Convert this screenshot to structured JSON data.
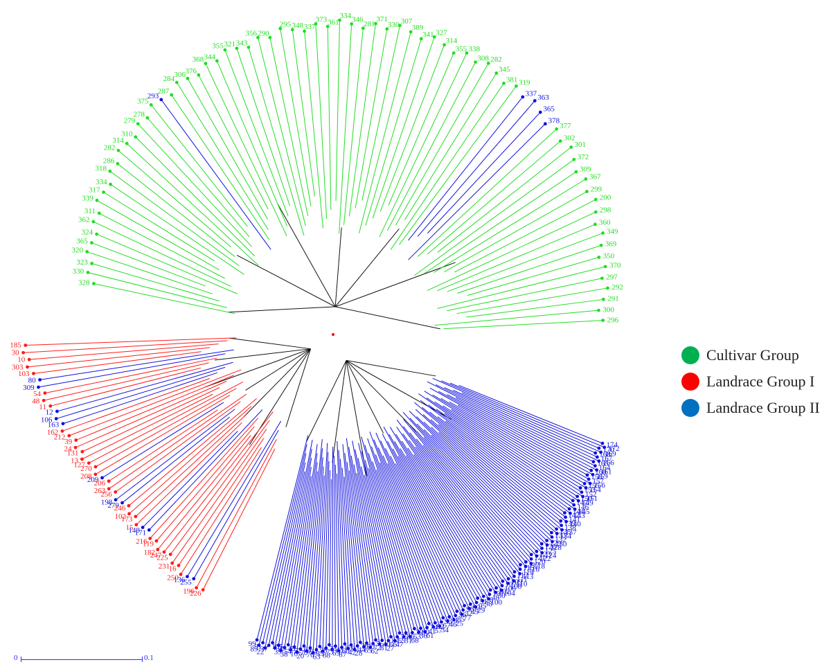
{
  "diagram": {
    "type": "circular-dendrogram",
    "root_color": "#ff0000",
    "cultivar": {
      "color": "#22dd22",
      "leaves": [
        {
          "label": "328",
          "color": "green"
        },
        {
          "label": "330",
          "color": "green"
        },
        {
          "label": "323",
          "color": "green"
        },
        {
          "label": "320",
          "color": "green"
        },
        {
          "label": "365",
          "color": "green"
        },
        {
          "label": "324",
          "color": "green"
        },
        {
          "label": "362",
          "color": "green"
        },
        {
          "label": "311",
          "color": "green"
        },
        {
          "label": "339",
          "color": "green"
        },
        {
          "label": "317",
          "color": "green"
        },
        {
          "label": "334",
          "color": "green"
        },
        {
          "label": "318",
          "color": "green"
        },
        {
          "label": "286",
          "color": "green"
        },
        {
          "label": "282",
          "color": "green"
        },
        {
          "label": "314",
          "color": "green"
        },
        {
          "label": "310",
          "color": "green"
        },
        {
          "label": "279",
          "color": "green"
        },
        {
          "label": "278",
          "color": "green"
        },
        {
          "label": "375",
          "color": "green"
        },
        {
          "label": "293",
          "color": "blue"
        },
        {
          "label": "287",
          "color": "green"
        },
        {
          "label": "284",
          "color": "green"
        },
        {
          "label": "306",
          "color": "green"
        },
        {
          "label": "376",
          "color": "green"
        },
        {
          "label": "368",
          "color": "green"
        },
        {
          "label": "344",
          "color": "green"
        },
        {
          "label": "355",
          "color": "green"
        },
        {
          "label": "321",
          "color": "green"
        },
        {
          "label": "343",
          "color": "green"
        },
        {
          "label": "356",
          "color": "green"
        },
        {
          "label": "290",
          "color": "green"
        },
        {
          "label": "295",
          "color": "green"
        },
        {
          "label": "348",
          "color": "green"
        },
        {
          "label": "337",
          "color": "green"
        },
        {
          "label": "373",
          "color": "green"
        },
        {
          "label": "361",
          "color": "green"
        },
        {
          "label": "334",
          "color": "green"
        },
        {
          "label": "346",
          "color": "green"
        },
        {
          "label": "281",
          "color": "green"
        },
        {
          "label": "371",
          "color": "green"
        },
        {
          "label": "330",
          "color": "green"
        },
        {
          "label": "307",
          "color": "green"
        },
        {
          "label": "389",
          "color": "green"
        },
        {
          "label": "341",
          "color": "green"
        },
        {
          "label": "327",
          "color": "green"
        },
        {
          "label": "314",
          "color": "green"
        },
        {
          "label": "355",
          "color": "green"
        },
        {
          "label": "338",
          "color": "green"
        },
        {
          "label": "308",
          "color": "green"
        },
        {
          "label": "282",
          "color": "green"
        },
        {
          "label": "345",
          "color": "green"
        },
        {
          "label": "381",
          "color": "green"
        },
        {
          "label": "319",
          "color": "green"
        },
        {
          "label": "337",
          "color": "blue"
        },
        {
          "label": "363",
          "color": "blue"
        },
        {
          "label": "365",
          "color": "blue"
        },
        {
          "label": "378",
          "color": "blue"
        },
        {
          "label": "377",
          "color": "green"
        },
        {
          "label": "302",
          "color": "green"
        },
        {
          "label": "301",
          "color": "green"
        },
        {
          "label": "372",
          "color": "green"
        },
        {
          "label": "309",
          "color": "green"
        },
        {
          "label": "367",
          "color": "green"
        },
        {
          "label": "299",
          "color": "green"
        },
        {
          "label": "200",
          "color": "green"
        },
        {
          "label": "298",
          "color": "green"
        },
        {
          "label": "360",
          "color": "green"
        },
        {
          "label": "349",
          "color": "green"
        },
        {
          "label": "369",
          "color": "green"
        },
        {
          "label": "350",
          "color": "green"
        },
        {
          "label": "370",
          "color": "green"
        },
        {
          "label": "297",
          "color": "green"
        },
        {
          "label": "292",
          "color": "green"
        },
        {
          "label": "291",
          "color": "green"
        },
        {
          "label": "300",
          "color": "green"
        },
        {
          "label": "296",
          "color": "green"
        }
      ]
    },
    "landrace_1": {
      "color": "#ff1a1a",
      "leaves": [
        {
          "label": "185",
          "color": "red"
        },
        {
          "label": "30",
          "color": "red"
        },
        {
          "label": "10",
          "color": "red"
        },
        {
          "label": "303",
          "color": "red"
        },
        {
          "label": "103",
          "color": "red"
        },
        {
          "label": "80",
          "color": "blue"
        },
        {
          "label": "309",
          "color": "blue"
        },
        {
          "label": "54",
          "color": "red"
        },
        {
          "label": "48",
          "color": "red"
        },
        {
          "label": "11",
          "color": "red"
        },
        {
          "label": "12",
          "color": "blue"
        },
        {
          "label": "106",
          "color": "blue"
        },
        {
          "label": "163",
          "color": "blue"
        },
        {
          "label": "162",
          "color": "red"
        },
        {
          "label": "212",
          "color": "red"
        },
        {
          "label": "39",
          "color": "red"
        },
        {
          "label": "24",
          "color": "red"
        },
        {
          "label": "131",
          "color": "red"
        },
        {
          "label": "13",
          "color": "red"
        },
        {
          "label": "127",
          "color": "red"
        },
        {
          "label": "270",
          "color": "red"
        },
        {
          "label": "208",
          "color": "red"
        },
        {
          "label": "209",
          "color": "blue"
        },
        {
          "label": "206",
          "color": "red"
        },
        {
          "label": "263",
          "color": "red"
        },
        {
          "label": "256",
          "color": "red"
        },
        {
          "label": "198",
          "color": "blue"
        },
        {
          "label": "279",
          "color": "blue"
        },
        {
          "label": "246",
          "color": "red"
        },
        {
          "label": "102",
          "color": "red"
        },
        {
          "label": "173",
          "color": "red"
        },
        {
          "label": "15",
          "color": "red"
        },
        {
          "label": "148",
          "color": "blue"
        },
        {
          "label": "171",
          "color": "blue"
        },
        {
          "label": "216",
          "color": "red"
        },
        {
          "label": "119",
          "color": "red"
        },
        {
          "label": "182",
          "color": "red"
        },
        {
          "label": "247",
          "color": "red"
        },
        {
          "label": "225",
          "color": "red"
        },
        {
          "label": "231",
          "color": "red"
        },
        {
          "label": "16",
          "color": "red"
        },
        {
          "label": "250",
          "color": "red"
        },
        {
          "label": "136",
          "color": "blue"
        },
        {
          "label": "255",
          "color": "blue"
        },
        {
          "label": "196",
          "color": "red"
        },
        {
          "label": "226",
          "color": "red"
        }
      ]
    },
    "landrace_2": {
      "color": "#1010dd",
      "leaves": [
        {
          "label": "99"
        },
        {
          "label": "89"
        },
        {
          "label": "91"
        },
        {
          "label": "22"
        },
        {
          "label": "37"
        },
        {
          "label": "105"
        },
        {
          "label": "39"
        },
        {
          "label": "97"
        },
        {
          "label": "38"
        },
        {
          "label": "54"
        },
        {
          "label": "45"
        },
        {
          "label": "16"
        },
        {
          "label": "52"
        },
        {
          "label": "20"
        },
        {
          "label": "70"
        },
        {
          "label": "64"
        },
        {
          "label": "76"
        },
        {
          "label": "94"
        },
        {
          "label": "63"
        },
        {
          "label": "35"
        },
        {
          "label": "58"
        },
        {
          "label": "88"
        },
        {
          "label": "73"
        },
        {
          "label": "33"
        },
        {
          "label": "69"
        },
        {
          "label": "43"
        },
        {
          "label": "87"
        },
        {
          "label": "60"
        },
        {
          "label": "83"
        },
        {
          "label": "42"
        },
        {
          "label": "92"
        },
        {
          "label": "28"
        },
        {
          "label": "44"
        },
        {
          "label": "78"
        },
        {
          "label": "65"
        },
        {
          "label": "50"
        },
        {
          "label": "62"
        },
        {
          "label": "72"
        },
        {
          "label": "55"
        },
        {
          "label": "81"
        },
        {
          "label": "40"
        },
        {
          "label": "27"
        },
        {
          "label": "66"
        },
        {
          "label": "84"
        },
        {
          "label": "47"
        },
        {
          "label": "59"
        },
        {
          "label": "75"
        },
        {
          "label": "31"
        },
        {
          "label": "86"
        },
        {
          "label": "68"
        },
        {
          "label": "53"
        },
        {
          "label": "79"
        },
        {
          "label": "36"
        },
        {
          "label": "90"
        },
        {
          "label": "61"
        },
        {
          "label": "41"
        },
        {
          "label": "74"
        },
        {
          "label": "57"
        },
        {
          "label": "82"
        },
        {
          "label": "34"
        },
        {
          "label": "67"
        },
        {
          "label": "93"
        },
        {
          "label": "46"
        },
        {
          "label": "71"
        },
        {
          "label": "25"
        },
        {
          "label": "85"
        },
        {
          "label": "56"
        },
        {
          "label": "77"
        },
        {
          "label": "32"
        },
        {
          "label": "96"
        },
        {
          "label": "49"
        },
        {
          "label": "80"
        },
        {
          "label": "29"
        },
        {
          "label": "95"
        },
        {
          "label": "51"
        },
        {
          "label": "98"
        },
        {
          "label": "26"
        },
        {
          "label": "100"
        },
        {
          "label": "48"
        },
        {
          "label": "101"
        },
        {
          "label": "30"
        },
        {
          "label": "102"
        },
        {
          "label": "104"
        },
        {
          "label": "106"
        },
        {
          "label": "107"
        },
        {
          "label": "108"
        },
        {
          "label": "109"
        },
        {
          "label": "110"
        },
        {
          "label": "111"
        },
        {
          "label": "112"
        },
        {
          "label": "113"
        },
        {
          "label": "114"
        },
        {
          "label": "115"
        },
        {
          "label": "116"
        },
        {
          "label": "117"
        },
        {
          "label": "118"
        },
        {
          "label": "120"
        },
        {
          "label": "121"
        },
        {
          "label": "122"
        },
        {
          "label": "123"
        },
        {
          "label": "124"
        },
        {
          "label": "125"
        },
        {
          "label": "126"
        },
        {
          "label": "128"
        },
        {
          "label": "129"
        },
        {
          "label": "130"
        },
        {
          "label": "132"
        },
        {
          "label": "133"
        },
        {
          "label": "134"
        },
        {
          "label": "135"
        },
        {
          "label": "137"
        },
        {
          "label": "138"
        },
        {
          "label": "139"
        },
        {
          "label": "140"
        },
        {
          "label": "141"
        },
        {
          "label": "142"
        },
        {
          "label": "143"
        },
        {
          "label": "144"
        },
        {
          "label": "145"
        },
        {
          "label": "146"
        },
        {
          "label": "147"
        },
        {
          "label": "149"
        },
        {
          "label": "150"
        },
        {
          "label": "151"
        },
        {
          "label": "152"
        },
        {
          "label": "153"
        },
        {
          "label": "154"
        },
        {
          "label": "155"
        },
        {
          "label": "156"
        },
        {
          "label": "157"
        },
        {
          "label": "158"
        },
        {
          "label": "159"
        },
        {
          "label": "160"
        },
        {
          "label": "161"
        },
        {
          "label": "164"
        },
        {
          "label": "165"
        },
        {
          "label": "166"
        },
        {
          "label": "167"
        },
        {
          "label": "168"
        },
        {
          "label": "169"
        },
        {
          "label": "170"
        },
        {
          "label": "172"
        },
        {
          "label": "174"
        }
      ]
    }
  },
  "legend": [
    {
      "label": "Cultivar Group",
      "color": "#00b050"
    },
    {
      "label": "Landrace Group I",
      "color": "#ff0000"
    },
    {
      "label": "Landrace Group II",
      "color": "#0070c0"
    }
  ],
  "scale_bar": {
    "start_label": "0",
    "end_label": "0.1",
    "color": "#2a2aff"
  }
}
